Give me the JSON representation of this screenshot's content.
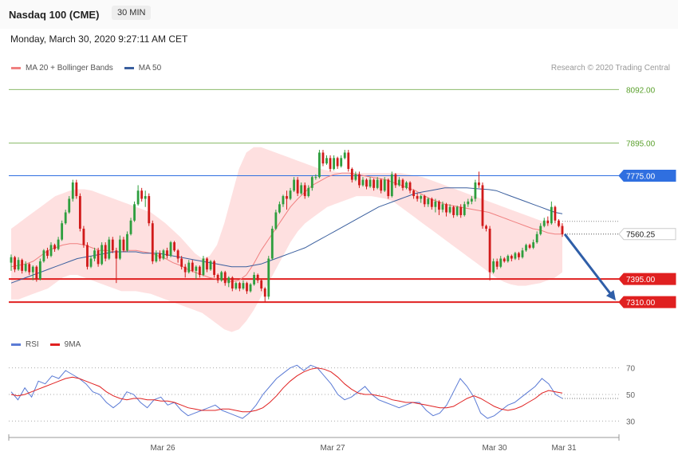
{
  "header": {
    "title": "Nasdaq 100 (CME)",
    "timeframe": "30 MIN"
  },
  "datetime": "Monday, March 30, 2020 9:27:11 AM CET",
  "credit": "Research © 2020 Trading Central",
  "legend": {
    "ma20_label": "MA 20 + Bollinger Bands",
    "ma20_color": "#f08080",
    "ma50_label": "MA 50",
    "ma50_color": "#3a5f9e"
  },
  "rsi_legend": {
    "rsi_label": "RSI",
    "rsi_color": "#5b7bd5",
    "ma9_label": "9MA",
    "ma9_color": "#e02020"
  },
  "chart_data": {
    "type": "candlestick",
    "ylim": [
      7190,
      8140
    ],
    "levels": [
      {
        "label": "8092.00",
        "value": 8092,
        "kind": "target",
        "color": "#5aa02c"
      },
      {
        "label": "7895.00",
        "value": 7895,
        "kind": "target",
        "color": "#5aa02c"
      },
      {
        "label": "7775.00",
        "value": 7775,
        "kind": "pivot",
        "color": "#2f6fe0"
      },
      {
        "label": "7560.25",
        "value": 7560.25,
        "kind": "last",
        "color": "#333333"
      },
      {
        "label": "7395.00",
        "value": 7395,
        "kind": "support",
        "color": "#e02020"
      },
      {
        "label": "7310.00",
        "value": 7310,
        "kind": "support",
        "color": "#e02020"
      }
    ],
    "x_ticks": [
      "Mar 26",
      "Mar 27",
      "Mar 30",
      "Mar 31"
    ],
    "arrow": {
      "from": 7560,
      "to": 7310
    },
    "candles": [
      [
        7455,
        7475,
        7425,
        7485
      ],
      [
        7475,
        7430,
        7420,
        7480
      ],
      [
        7430,
        7465,
        7425,
        7475
      ],
      [
        7465,
        7425,
        7415,
        7470
      ],
      [
        7425,
        7450,
        7420,
        7460
      ],
      [
        7450,
        7420,
        7410,
        7455
      ],
      [
        7420,
        7440,
        7390,
        7445
      ],
      [
        7440,
        7395,
        7385,
        7445
      ],
      [
        7395,
        7460,
        7390,
        7470
      ],
      [
        7460,
        7500,
        7455,
        7505
      ],
      [
        7500,
        7480,
        7470,
        7510
      ],
      [
        7480,
        7520,
        7475,
        7530
      ],
      [
        7520,
        7505,
        7495,
        7525
      ],
      [
        7505,
        7540,
        7500,
        7550
      ],
      [
        7540,
        7600,
        7535,
        7610
      ],
      [
        7600,
        7640,
        7595,
        7650
      ],
      [
        7640,
        7690,
        7635,
        7700
      ],
      [
        7690,
        7750,
        7680,
        7760
      ],
      [
        7750,
        7700,
        7690,
        7760
      ],
      [
        7700,
        7580,
        7570,
        7710
      ],
      [
        7580,
        7520,
        7510,
        7590
      ],
      [
        7520,
        7440,
        7430,
        7530
      ],
      [
        7440,
        7470,
        7435,
        7480
      ],
      [
        7470,
        7500,
        7460,
        7510
      ],
      [
        7500,
        7450,
        7440,
        7510
      ],
      [
        7450,
        7520,
        7445,
        7530
      ],
      [
        7520,
        7470,
        7460,
        7530
      ],
      [
        7470,
        7540,
        7465,
        7550
      ],
      [
        7540,
        7500,
        7490,
        7550
      ],
      [
        7500,
        7470,
        7380,
        7510
      ],
      [
        7470,
        7540,
        7465,
        7555
      ],
      [
        7540,
        7500,
        7495,
        7550
      ],
      [
        7500,
        7560,
        7495,
        7570
      ],
      [
        7560,
        7610,
        7555,
        7620
      ],
      [
        7610,
        7670,
        7605,
        7680
      ],
      [
        7670,
        7720,
        7665,
        7740
      ],
      [
        7720,
        7690,
        7680,
        7730
      ],
      [
        7690,
        7700,
        7660,
        7720
      ],
      [
        7700,
        7600,
        7590,
        7710
      ],
      [
        7600,
        7460,
        7450,
        7610
      ],
      [
        7460,
        7490,
        7455,
        7500
      ],
      [
        7490,
        7470,
        7460,
        7500
      ],
      [
        7470,
        7500,
        7465,
        7505
      ],
      [
        7500,
        7480,
        7470,
        7510
      ],
      [
        7480,
        7530,
        7475,
        7535
      ],
      [
        7530,
        7500,
        7495,
        7535
      ],
      [
        7500,
        7470,
        7455,
        7505
      ],
      [
        7470,
        7440,
        7430,
        7480
      ],
      [
        7440,
        7420,
        7400,
        7450
      ],
      [
        7420,
        7455,
        7415,
        7465
      ],
      [
        7455,
        7425,
        7420,
        7465
      ],
      [
        7425,
        7440,
        7395,
        7445
      ],
      [
        7440,
        7410,
        7400,
        7445
      ],
      [
        7410,
        7470,
        7405,
        7480
      ],
      [
        7470,
        7430,
        7420,
        7475
      ],
      [
        7430,
        7460,
        7425,
        7465
      ],
      [
        7460,
        7410,
        7400,
        7465
      ],
      [
        7410,
        7390,
        7380,
        7415
      ],
      [
        7390,
        7420,
        7385,
        7425
      ],
      [
        7420,
        7380,
        7370,
        7425
      ],
      [
        7380,
        7400,
        7365,
        7405
      ],
      [
        7400,
        7360,
        7350,
        7405
      ],
      [
        7360,
        7380,
        7355,
        7385
      ],
      [
        7380,
        7360,
        7350,
        7385
      ],
      [
        7360,
        7380,
        7355,
        7390
      ],
      [
        7380,
        7350,
        7340,
        7385
      ],
      [
        7350,
        7375,
        7345,
        7380
      ],
      [
        7375,
        7410,
        7370,
        7420
      ],
      [
        7410,
        7390,
        7380,
        7415
      ],
      [
        7390,
        7360,
        7350,
        7395
      ],
      [
        7360,
        7330,
        7310,
        7365
      ],
      [
        7330,
        7470,
        7320,
        7480
      ],
      [
        7470,
        7580,
        7465,
        7590
      ],
      [
        7580,
        7640,
        7575,
        7650
      ],
      [
        7640,
        7670,
        7635,
        7680
      ],
      [
        7670,
        7700,
        7660,
        7705
      ],
      [
        7700,
        7690,
        7650,
        7720
      ],
      [
        7690,
        7720,
        7685,
        7730
      ],
      [
        7720,
        7760,
        7715,
        7770
      ],
      [
        7760,
        7710,
        7700,
        7770
      ],
      [
        7710,
        7740,
        7705,
        7750
      ],
      [
        7740,
        7700,
        7690,
        7750
      ],
      [
        7700,
        7730,
        7695,
        7740
      ],
      [
        7730,
        7770,
        7720,
        7775
      ],
      [
        7770,
        7770,
        7760,
        7780
      ],
      [
        7770,
        7860,
        7765,
        7870
      ],
      [
        7860,
        7820,
        7810,
        7870
      ],
      [
        7820,
        7840,
        7815,
        7850
      ],
      [
        7840,
        7800,
        7790,
        7850
      ],
      [
        7800,
        7840,
        7795,
        7850
      ],
      [
        7840,
        7810,
        7800,
        7845
      ],
      [
        7810,
        7840,
        7805,
        7850
      ],
      [
        7840,
        7860,
        7835,
        7870
      ],
      [
        7860,
        7800,
        7790,
        7870
      ],
      [
        7800,
        7760,
        7750,
        7805
      ],
      [
        7760,
        7780,
        7755,
        7790
      ],
      [
        7780,
        7740,
        7730,
        7790
      ],
      [
        7740,
        7760,
        7735,
        7770
      ],
      [
        7760,
        7735,
        7725,
        7765
      ],
      [
        7735,
        7760,
        7730,
        7770
      ],
      [
        7760,
        7730,
        7720,
        7765
      ],
      [
        7730,
        7760,
        7725,
        7770
      ],
      [
        7760,
        7720,
        7710,
        7765
      ],
      [
        7720,
        7760,
        7715,
        7770
      ],
      [
        7760,
        7700,
        7690,
        7765
      ],
      [
        7700,
        7780,
        7695,
        7790
      ],
      [
        7780,
        7740,
        7730,
        7785
      ],
      [
        7740,
        7760,
        7735,
        7770
      ],
      [
        7760,
        7730,
        7720,
        7765
      ],
      [
        7730,
        7750,
        7725,
        7755
      ],
      [
        7750,
        7720,
        7710,
        7755
      ],
      [
        7720,
        7700,
        7690,
        7725
      ],
      [
        7700,
        7690,
        7680,
        7710
      ],
      [
        7690,
        7700,
        7675,
        7705
      ],
      [
        7700,
        7670,
        7660,
        7705
      ],
      [
        7670,
        7690,
        7660,
        7695
      ],
      [
        7690,
        7660,
        7650,
        7695
      ],
      [
        7660,
        7680,
        7640,
        7690
      ],
      [
        7680,
        7650,
        7630,
        7685
      ],
      [
        7650,
        7670,
        7640,
        7680
      ],
      [
        7670,
        7640,
        7625,
        7675
      ],
      [
        7640,
        7660,
        7635,
        7670
      ],
      [
        7660,
        7630,
        7620,
        7665
      ],
      [
        7630,
        7660,
        7625,
        7665
      ],
      [
        7660,
        7630,
        7620,
        7670
      ],
      [
        7630,
        7670,
        7625,
        7680
      ],
      [
        7670,
        7680,
        7660,
        7690
      ],
      [
        7680,
        7690,
        7670,
        7700
      ],
      [
        7690,
        7750,
        7680,
        7760
      ],
      [
        7750,
        7740,
        7730,
        7790
      ],
      [
        7740,
        7590,
        7580,
        7750
      ],
      [
        7590,
        7580,
        7570,
        7595
      ],
      [
        7580,
        7420,
        7390,
        7590
      ],
      [
        7420,
        7460,
        7415,
        7470
      ],
      [
        7460,
        7440,
        7430,
        7470
      ],
      [
        7440,
        7470,
        7435,
        7480
      ],
      [
        7470,
        7460,
        7455,
        7475
      ],
      [
        7460,
        7480,
        7455,
        7485
      ],
      [
        7480,
        7470,
        7460,
        7485
      ],
      [
        7470,
        7490,
        7465,
        7495
      ],
      [
        7490,
        7475,
        7465,
        7495
      ],
      [
        7475,
        7500,
        7470,
        7510
      ],
      [
        7500,
        7520,
        7495,
        7525
      ],
      [
        7520,
        7510,
        7505,
        7525
      ],
      [
        7510,
        7530,
        7505,
        7540
      ],
      [
        7530,
        7560,
        7525,
        7570
      ],
      [
        7560,
        7590,
        7555,
        7600
      ],
      [
        7590,
        7610,
        7585,
        7620
      ],
      [
        7610,
        7600,
        7590,
        7625
      ],
      [
        7600,
        7660,
        7595,
        7680
      ],
      [
        7660,
        7610,
        7600,
        7665
      ],
      [
        7610,
        7590,
        7585,
        7615
      ],
      [
        7590,
        7560,
        7550,
        7600
      ]
    ],
    "ma20": [
      7440,
      7445,
      7450,
      7460,
      7480,
      7500,
      7510,
      7520,
      7525,
      7525,
      7520,
      7510,
      7500,
      7500,
      7495,
      7495,
      7500,
      7500,
      7495,
      7490,
      7480,
      7470,
      7455,
      7445,
      7430,
      7420,
      7410,
      7400,
      7395,
      7390,
      7385,
      7390,
      7410,
      7450,
      7500,
      7540,
      7580,
      7620,
      7660,
      7690,
      7715,
      7740,
      7755,
      7770,
      7780,
      7785,
      7785,
      7780,
      7775,
      7770,
      7765,
      7760,
      7750,
      7740,
      7730,
      7720,
      7705,
      7690,
      7680,
      7670,
      7665,
      7660,
      7655,
      7650,
      7645,
      7640,
      7630,
      7620,
      7610,
      7600,
      7590,
      7580,
      7575,
      7565,
      7560,
      7560
    ],
    "ma50": [
      7380,
      7390,
      7400,
      7410,
      7420,
      7430,
      7440,
      7450,
      7460,
      7470,
      7475,
      7480,
      7485,
      7490,
      7495,
      7495,
      7495,
      7495,
      7490,
      7490,
      7490,
      7485,
      7480,
      7475,
      7470,
      7465,
      7460,
      7455,
      7450,
      7445,
      7440,
      7440,
      7440,
      7445,
      7450,
      7460,
      7470,
      7480,
      7490,
      7500,
      7510,
      7525,
      7540,
      7555,
      7570,
      7585,
      7600,
      7615,
      7630,
      7645,
      7660,
      7670,
      7680,
      7690,
      7700,
      7710,
      7715,
      7720,
      7725,
      7730,
      7730,
      7730,
      7730,
      7728,
      7726,
      7724,
      7720,
      7710,
      7700,
      7690,
      7680,
      7670,
      7660,
      7650,
      7640,
      7635
    ],
    "bb_upper": [
      7580,
      7600,
      7620,
      7640,
      7660,
      7680,
      7700,
      7710,
      7720,
      7725,
      7725,
      7720,
      7710,
      7700,
      7690,
      7680,
      7670,
      7660,
      7650,
      7640,
      7620,
      7600,
      7575,
      7550,
      7520,
      7490,
      7470,
      7480,
      7520,
      7600,
      7700,
      7800,
      7860,
      7880,
      7880,
      7870,
      7860,
      7850,
      7840,
      7830,
      7820,
      7810,
      7800,
      7795,
      7790,
      7785,
      7785,
      7785,
      7785,
      7785,
      7785,
      7785,
      7785,
      7785,
      7780,
      7775,
      7770,
      7760,
      7750,
      7740,
      7730,
      7720,
      7710,
      7700,
      7690,
      7680,
      7670,
      7660,
      7650,
      7640,
      7630,
      7620,
      7610,
      7600,
      7600,
      7600
    ],
    "bb_lower": [
      7320,
      7320,
      7330,
      7340,
      7350,
      7360,
      7380,
      7400,
      7410,
      7410,
      7400,
      7390,
      7380,
      7370,
      7360,
      7350,
      7350,
      7350,
      7345,
      7340,
      7330,
      7320,
      7310,
      7300,
      7290,
      7280,
      7270,
      7250,
      7230,
      7210,
      7200,
      7210,
      7240,
      7280,
      7330,
      7380,
      7430,
      7480,
      7530,
      7570,
      7600,
      7620,
      7640,
      7660,
      7670,
      7680,
      7690,
      7700,
      7700,
      7700,
      7695,
      7690,
      7680,
      7660,
      7640,
      7620,
      7600,
      7580,
      7560,
      7540,
      7520,
      7500,
      7480,
      7460,
      7440,
      7420,
      7400,
      7385,
      7375,
      7370,
      7370,
      7375,
      7380,
      7390,
      7400,
      7420
    ],
    "rsi": {
      "ylim": [
        20,
        80
      ],
      "ticks": [
        30,
        50,
        70
      ],
      "last": 47,
      "rsi": [
        52,
        46,
        55,
        48,
        60,
        58,
        64,
        62,
        68,
        65,
        62,
        58,
        52,
        50,
        44,
        40,
        44,
        52,
        50,
        44,
        40,
        46,
        48,
        42,
        44,
        38,
        34,
        36,
        38,
        40,
        42,
        38,
        36,
        34,
        32,
        36,
        42,
        50,
        56,
        62,
        66,
        70,
        72,
        68,
        72,
        70,
        64,
        58,
        50,
        46,
        48,
        52,
        56,
        50,
        46,
        44,
        42,
        40,
        42,
        44,
        44,
        38,
        34,
        36,
        42,
        52,
        62,
        56,
        48,
        36,
        32,
        34,
        38,
        42,
        44,
        48,
        52,
        56,
        62,
        58,
        50,
        47
      ],
      "ma9": [
        50,
        49,
        50,
        52,
        54,
        56,
        58,
        60,
        62,
        63,
        62,
        60,
        58,
        56,
        52,
        49,
        47,
        46,
        47,
        47,
        46,
        46,
        45,
        45,
        44,
        42,
        40,
        39,
        38,
        38,
        38,
        39,
        39,
        38,
        37,
        37,
        38,
        40,
        44,
        49,
        55,
        60,
        64,
        67,
        69,
        70,
        69,
        67,
        63,
        58,
        54,
        51,
        50,
        50,
        49,
        48,
        46,
        45,
        44,
        44,
        43,
        42,
        41,
        40,
        40,
        41,
        44,
        47,
        49,
        47,
        44,
        41,
        39,
        38,
        39,
        41,
        44,
        47,
        51,
        53,
        52,
        51
      ]
    }
  }
}
